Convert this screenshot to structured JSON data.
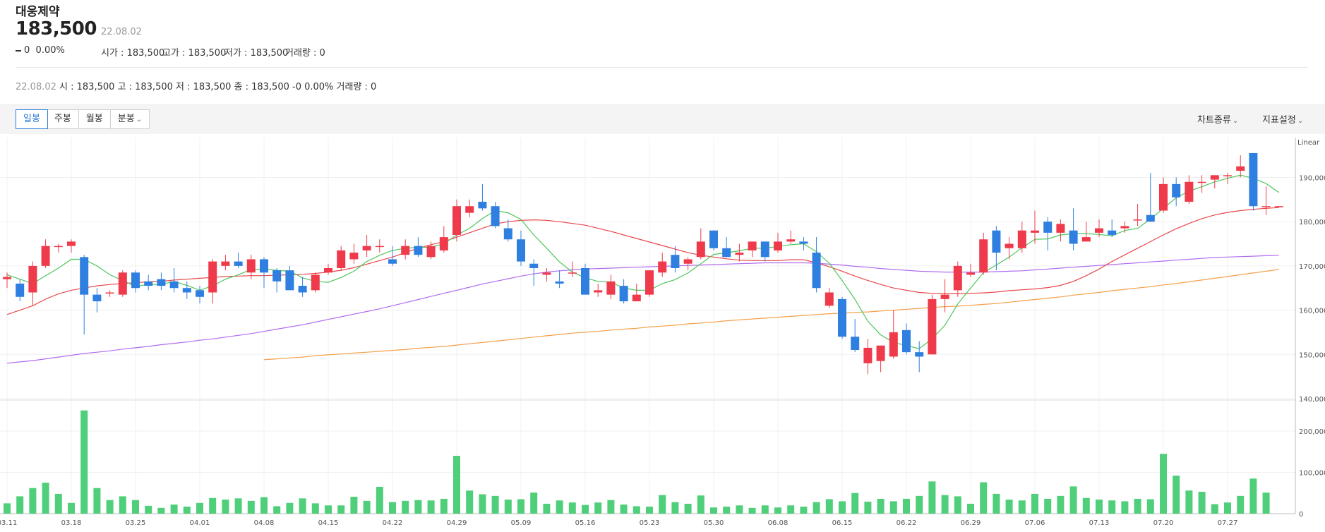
{
  "stock": {
    "name": "대웅제약",
    "price": "183,500",
    "date": "22.08.02",
    "change": "0",
    "change_pct": "0.00%",
    "open": "시가 : 183,500",
    "high": "고가 : 183,500",
    "low": "저가 : 183,500",
    "volume": "거래량 : 0"
  },
  "legend": {
    "date": "22.08.02",
    "text": " 시 : 183,500  고 : 183,500  저 : 183,500  종 : 183,500 -0 0.00%  거래량 : 0"
  },
  "toolbar": {
    "periods": [
      "일봉",
      "주봉",
      "월봉",
      "분봉"
    ],
    "active": "일봉",
    "chart_type": "차트종류",
    "indicator": "지표설정"
  },
  "colors": {
    "up": "#ee3a4a",
    "down": "#2f7fe0",
    "volume": "#4fcf7a",
    "ma5": "#4cc75a",
    "ma20": "#e8474a",
    "ma60": "#b06cf0",
    "ma120": "#f4a04a"
  },
  "chart_data": {
    "type": "candlestick",
    "scale_label": "Linear",
    "price_ticks": [
      140000,
      150000,
      160000,
      170000,
      180000,
      190000
    ],
    "price_tick_labels": [
      "140,000",
      "150,000",
      "160,000",
      "170,000",
      "180,000",
      "190,000"
    ],
    "price_range": [
      140000,
      199000
    ],
    "volume_ticks": [
      0,
      100000,
      200000
    ],
    "volume_tick_labels": [
      "0",
      "100,000",
      "200,000"
    ],
    "volume_range": [
      0,
      270000
    ],
    "x_labels": [
      {
        "i": 0,
        "label": "03.11"
      },
      {
        "i": 5,
        "label": "03.18"
      },
      {
        "i": 10,
        "label": "03.25"
      },
      {
        "i": 15,
        "label": "04.01"
      },
      {
        "i": 20,
        "label": "04.08"
      },
      {
        "i": 25,
        "label": "04.15"
      },
      {
        "i": 30,
        "label": "04.22"
      },
      {
        "i": 35,
        "label": "04.29"
      },
      {
        "i": 40,
        "label": "05.09"
      },
      {
        "i": 45,
        "label": "05.16"
      },
      {
        "i": 50,
        "label": "05.23"
      },
      {
        "i": 55,
        "label": "05.30"
      },
      {
        "i": 60,
        "label": "06.08"
      },
      {
        "i": 65,
        "label": "06.15"
      },
      {
        "i": 70,
        "label": "06.22"
      },
      {
        "i": 75,
        "label": "06.29"
      },
      {
        "i": 80,
        "label": "07.06"
      },
      {
        "i": 85,
        "label": "07.13"
      },
      {
        "i": 90,
        "label": "07.20"
      },
      {
        "i": 95,
        "label": "07.27"
      }
    ],
    "candles": [
      [
        167000,
        168500,
        165000,
        167500
      ],
      [
        166000,
        167000,
        162000,
        163000
      ],
      [
        164000,
        171000,
        161000,
        170000
      ],
      [
        170000,
        176000,
        169500,
        174500
      ],
      [
        174500,
        175000,
        173000,
        174500
      ],
      [
        174500,
        176000,
        173000,
        175500
      ],
      [
        172000,
        172500,
        154500,
        163500
      ],
      [
        163500,
        165000,
        159500,
        162000
      ],
      [
        164000,
        164500,
        163000,
        164000
      ],
      [
        163500,
        169000,
        163000,
        168500
      ],
      [
        168500,
        169000,
        164000,
        165000
      ],
      [
        166500,
        168000,
        164500,
        165500
      ],
      [
        167000,
        168500,
        164500,
        165500
      ],
      [
        166500,
        169500,
        164000,
        165000
      ],
      [
        165000,
        166500,
        162500,
        164000
      ],
      [
        164500,
        165500,
        161500,
        163000
      ],
      [
        164000,
        171500,
        161500,
        171000
      ],
      [
        170000,
        172500,
        169000,
        171000
      ],
      [
        171000,
        173000,
        169500,
        170000
      ],
      [
        168500,
        172500,
        167000,
        171500
      ],
      [
        171500,
        172000,
        165000,
        168500
      ],
      [
        169000,
        169500,
        164000,
        166500
      ],
      [
        169000,
        170000,
        164500,
        164500
      ],
      [
        165500,
        167500,
        163000,
        164000
      ],
      [
        164500,
        168500,
        164000,
        168000
      ],
      [
        168500,
        170500,
        168000,
        169500
      ],
      [
        169500,
        174500,
        169000,
        173500
      ],
      [
        171500,
        175000,
        170500,
        173000
      ],
      [
        173500,
        177000,
        172000,
        174500
      ],
      [
        174500,
        176000,
        173000,
        174500
      ],
      [
        171500,
        174500,
        170000,
        170500
      ],
      [
        172500,
        176000,
        171500,
        174500
      ],
      [
        174500,
        176500,
        172000,
        172500
      ],
      [
        172000,
        175500,
        171500,
        174500
      ],
      [
        173500,
        179000,
        173000,
        176500
      ],
      [
        177000,
        185000,
        175500,
        183500
      ],
      [
        182000,
        185000,
        181000,
        183500
      ],
      [
        184500,
        188500,
        182500,
        183000
      ],
      [
        183500,
        184500,
        178500,
        179000
      ],
      [
        178500,
        180500,
        175500,
        176000
      ],
      [
        176000,
        178000,
        170000,
        171000
      ],
      [
        170500,
        171500,
        165500,
        169500
      ],
      [
        168000,
        169500,
        166500,
        168500
      ],
      [
        166500,
        169000,
        165000,
        166000
      ],
      [
        168500,
        171000,
        167500,
        168500
      ],
      [
        169500,
        170500,
        163500,
        163500
      ],
      [
        164000,
        166000,
        163000,
        164500
      ],
      [
        163500,
        168000,
        162500,
        166500
      ],
      [
        165500,
        167000,
        161500,
        162000
      ],
      [
        162000,
        166000,
        162000,
        163500
      ],
      [
        163500,
        169000,
        163000,
        169000
      ],
      [
        168500,
        173000,
        167500,
        171000
      ],
      [
        172500,
        174500,
        168500,
        169500
      ],
      [
        170500,
        172000,
        169000,
        171500
      ],
      [
        172000,
        178500,
        171500,
        175500
      ],
      [
        178000,
        178000,
        173500,
        174000
      ],
      [
        174000,
        176500,
        172000,
        172000
      ],
      [
        172500,
        175000,
        171000,
        173000
      ],
      [
        173500,
        175000,
        172000,
        175500
      ],
      [
        175500,
        175500,
        171000,
        172000
      ],
      [
        173500,
        177500,
        173000,
        175500
      ],
      [
        175500,
        178000,
        175000,
        176000
      ],
      [
        175500,
        176500,
        173500,
        175000
      ],
      [
        173000,
        176500,
        164000,
        165000
      ],
      [
        161000,
        165000,
        160500,
        164000
      ],
      [
        162500,
        163000,
        153500,
        154000
      ],
      [
        154000,
        158000,
        150500,
        151000
      ],
      [
        148000,
        153500,
        145500,
        151500
      ],
      [
        148500,
        152000,
        146000,
        152000
      ],
      [
        149500,
        160000,
        149000,
        155000
      ],
      [
        155500,
        157000,
        150000,
        150500
      ],
      [
        150500,
        153000,
        146000,
        149500
      ],
      [
        150000,
        163500,
        150000,
        162500
      ],
      [
        162500,
        167000,
        159500,
        163500
      ],
      [
        164500,
        171000,
        163000,
        170000
      ],
      [
        168000,
        170500,
        167500,
        168500
      ],
      [
        168500,
        177500,
        168000,
        176000
      ],
      [
        178000,
        179000,
        169000,
        173000
      ],
      [
        174000,
        176500,
        171500,
        175000
      ],
      [
        174000,
        180000,
        173000,
        178000
      ],
      [
        177500,
        182500,
        175000,
        178000
      ],
      [
        180000,
        181000,
        173500,
        177500
      ],
      [
        177500,
        180500,
        175500,
        179500
      ],
      [
        178000,
        183000,
        173500,
        175000
      ],
      [
        175500,
        180000,
        175500,
        176500
      ],
      [
        177500,
        180500,
        176500,
        178500
      ],
      [
        178000,
        180500,
        176500,
        177000
      ],
      [
        178500,
        180000,
        177500,
        179000
      ],
      [
        180500,
        184000,
        179000,
        180500
      ],
      [
        181500,
        191000,
        180000,
        180000
      ],
      [
        182500,
        190000,
        182000,
        188500
      ],
      [
        188500,
        190000,
        183500,
        185500
      ],
      [
        184500,
        190500,
        184000,
        189000
      ],
      [
        189000,
        190500,
        186500,
        189000
      ],
      [
        189500,
        190000,
        187500,
        190500
      ],
      [
        190500,
        191000,
        188500,
        190500
      ],
      [
        191500,
        195000,
        190000,
        192500
      ],
      [
        195500,
        195500,
        182500,
        183500
      ],
      [
        183500,
        188000,
        181500,
        183500
      ],
      [
        183500,
        183500,
        183500,
        183500
      ]
    ],
    "volume": [
      25000,
      42000,
      62000,
      75000,
      48000,
      26000,
      250000,
      62000,
      33000,
      42000,
      33000,
      19000,
      14000,
      22000,
      17000,
      26000,
      38000,
      34000,
      37000,
      31000,
      40000,
      18000,
      26000,
      37000,
      25000,
      20000,
      20000,
      41000,
      31000,
      65000,
      28000,
      31000,
      33000,
      32000,
      36000,
      140000,
      56000,
      47000,
      43000,
      34000,
      35000,
      51000,
      24000,
      32000,
      27000,
      21000,
      27000,
      33000,
      22000,
      18000,
      17000,
      45000,
      28000,
      24000,
      44000,
      15000,
      17000,
      20000,
      14000,
      20000,
      15000,
      20000,
      17000,
      28000,
      35000,
      30000,
      50000,
      29000,
      36000,
      30000,
      36000,
      43000,
      78000,
      45000,
      42000,
      24000,
      76000,
      48000,
      34000,
      32000,
      48000,
      36000,
      43000,
      66000,
      38000,
      34000,
      32000,
      30000,
      36000,
      35000,
      145000,
      92000,
      56000,
      53000,
      23000,
      27000,
      43000,
      85000,
      51000,
      0
    ],
    "ma5": [
      168000,
      167000,
      166000,
      167800,
      169500,
      171500,
      171500,
      170000,
      168000,
      166700,
      165400,
      165800,
      165800,
      166500,
      165600,
      164500,
      165500,
      167000,
      168000,
      169200,
      169300,
      169000,
      168800,
      167300,
      166500,
      166300,
      167400,
      168800,
      171000,
      172400,
      173500,
      174000,
      174200,
      174200,
      175000,
      177000,
      178500,
      180700,
      182500,
      182000,
      180500,
      177000,
      174000,
      170900,
      168600,
      167300,
      166500,
      166300,
      165000,
      164500,
      164500,
      166000,
      166900,
      168400,
      170500,
      172600,
      173000,
      173400,
      174000,
      174000,
      174400,
      174800,
      175000,
      173200,
      170600,
      166700,
      162400,
      157500,
      154400,
      152700,
      152000,
      151300,
      153500,
      156600,
      161400,
      165000,
      168500,
      170200,
      172000,
      174100,
      176000,
      176100,
      177000,
      177300,
      177300,
      177100,
      176800,
      178000,
      178500,
      180600,
      183000,
      185400,
      186900,
      187900,
      189000,
      189800,
      190500,
      189800,
      188600,
      186600
    ],
    "ma20": [
      159000,
      160000,
      161000,
      162500,
      163700,
      164500,
      165000,
      165500,
      165800,
      166000,
      166200,
      166400,
      166500,
      166800,
      167000,
      167200,
      167400,
      167600,
      167700,
      167800,
      167800,
      167900,
      168000,
      168100,
      168300,
      168600,
      169000,
      169600,
      170400,
      171200,
      172000,
      173000,
      174000,
      174800,
      175500,
      176500,
      177500,
      178500,
      179500,
      180000,
      180300,
      180400,
      180300,
      180000,
      179600,
      179200,
      178500,
      177800,
      177000,
      176200,
      175400,
      174600,
      173800,
      173000,
      172400,
      172000,
      171600,
      171300,
      171200,
      171200,
      171200,
      171400,
      171400,
      170700,
      169800,
      168800,
      167700,
      166700,
      165800,
      165000,
      164500,
      164000,
      163800,
      163700,
      163700,
      163800,
      163900,
      164100,
      164400,
      164600,
      164800,
      165100,
      165600,
      166500,
      167800,
      169300,
      171000,
      172500,
      174000,
      175500,
      177000,
      178400,
      179600,
      180700,
      181500,
      182100,
      182500,
      182800,
      183000,
      183200
    ],
    "ma60": [
      148000,
      148300,
      148600,
      149000,
      149400,
      149800,
      150200,
      150500,
      150800,
      151200,
      151500,
      151800,
      152200,
      152500,
      152800,
      153200,
      153500,
      153900,
      154300,
      154700,
      155200,
      155700,
      156200,
      156700,
      157300,
      157900,
      158500,
      159100,
      159700,
      160300,
      161000,
      161700,
      162400,
      163100,
      163800,
      164500,
      165200,
      165900,
      166500,
      167100,
      167700,
      168200,
      168600,
      168900,
      169100,
      169300,
      169400,
      169500,
      169600,
      169700,
      169800,
      169900,
      170000,
      170100,
      170200,
      170300,
      170400,
      170500,
      170600,
      170700,
      170700,
      170700,
      170700,
      170600,
      170400,
      170200,
      169900,
      169700,
      169400,
      169200,
      169000,
      168800,
      168700,
      168600,
      168600,
      168600,
      168600,
      168700,
      168800,
      168900,
      169100,
      169300,
      169500,
      169700,
      169900,
      170100,
      170300,
      170500,
      170700,
      170900,
      171100,
      171300,
      171500,
      171700,
      171900,
      172000,
      172100,
      172200,
      172300,
      172400
    ],
    "ma120": [
      null,
      null,
      null,
      null,
      null,
      null,
      null,
      null,
      null,
      null,
      null,
      null,
      null,
      null,
      null,
      null,
      null,
      null,
      null,
      null,
      148800,
      149000,
      149200,
      149400,
      149700,
      149900,
      150100,
      150300,
      150500,
      150700,
      150900,
      151100,
      151400,
      151600,
      151800,
      152100,
      152400,
      152700,
      153000,
      153300,
      153600,
      153900,
      154200,
      154500,
      154800,
      155000,
      155200,
      155500,
      155700,
      155900,
      156200,
      156400,
      156600,
      156900,
      157100,
      157300,
      157600,
      157800,
      158000,
      158200,
      158400,
      158600,
      158800,
      159000,
      159200,
      159300,
      159500,
      159600,
      159800,
      160000,
      160200,
      160400,
      160600,
      160800,
      160900,
      161100,
      161300,
      161500,
      161800,
      162100,
      162400,
      162700,
      163000,
      163400,
      163700,
      164000,
      164400,
      164700,
      165000,
      165300,
      165700,
      166000,
      166400,
      166800,
      167200,
      167600,
      168000,
      168400,
      168800,
      169200
    ]
  }
}
